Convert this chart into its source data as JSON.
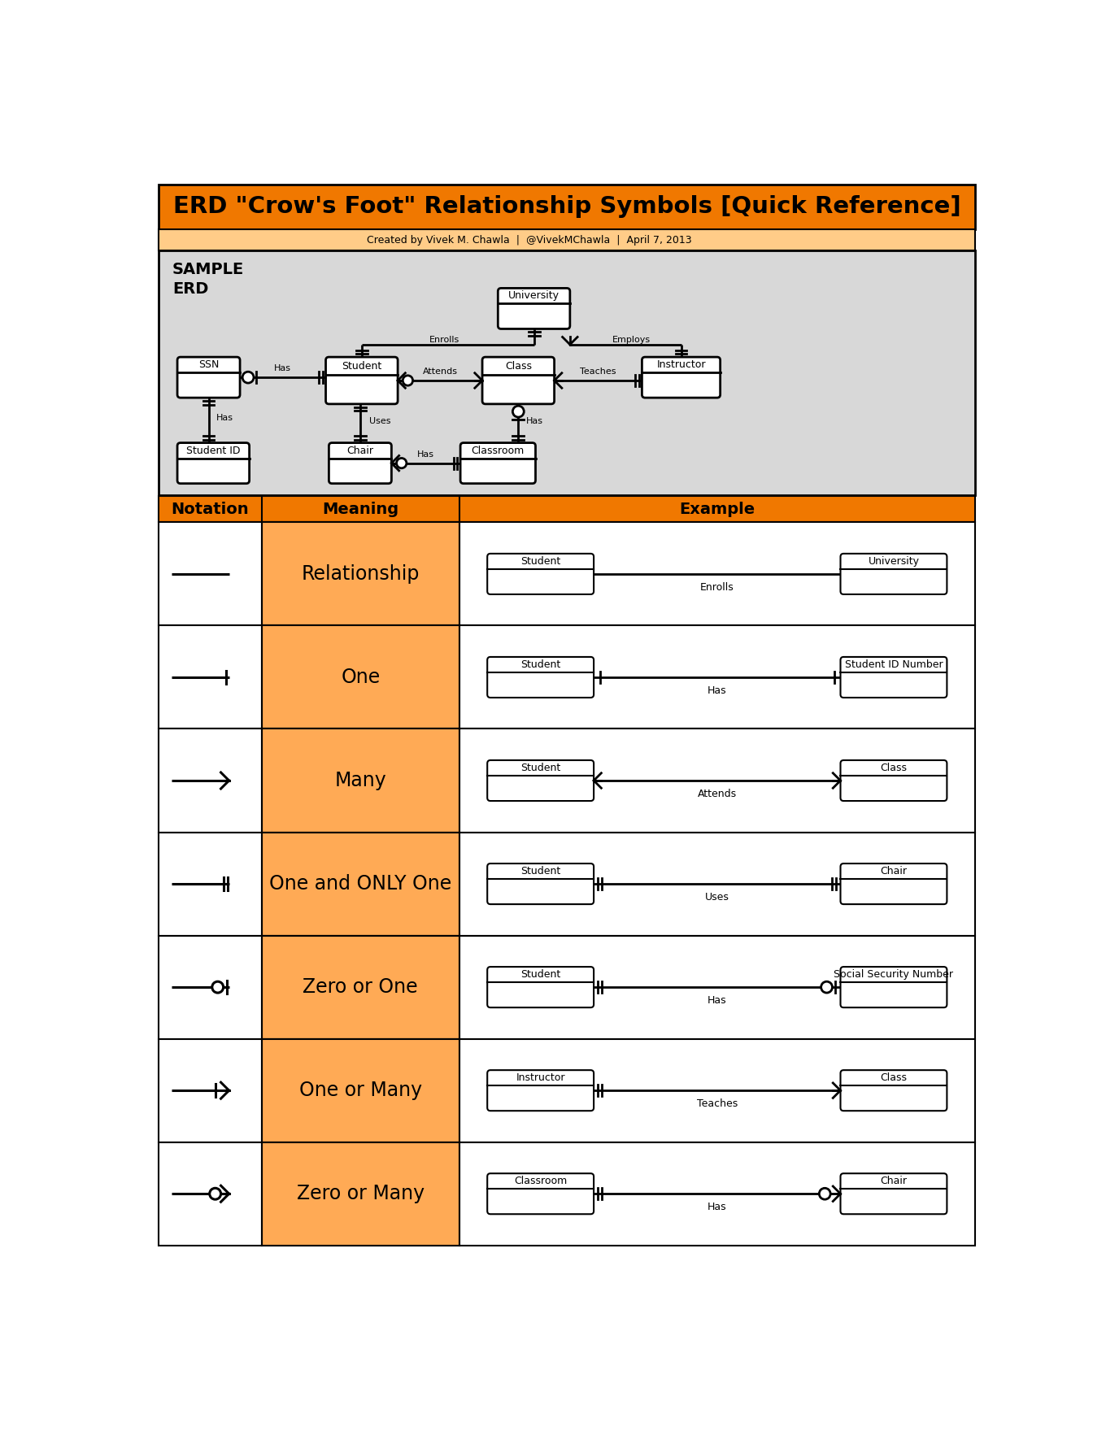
{
  "title": "ERD \"Crow's Foot\" Relationship Symbols [Quick Reference]",
  "subtitle": "Created by Vivek M. Chawla  |  @VivekMChawla  |  April 7, 2013",
  "title_bg": "#F07800",
  "subtitle_bg": "#FFCC88",
  "orange_cell": "#FFAA55",
  "table_header_bg": "#F07800",
  "erd_bg": "#D8D8D8",
  "white": "#FFFFFF",
  "black": "#000000",
  "notation_rows": [
    {
      "notation": "relationship",
      "meaning": "Relationship",
      "example_left": "Student",
      "example_right": "University",
      "example_label": "Enrolls"
    },
    {
      "notation": "one",
      "meaning": "One",
      "example_left": "Student",
      "example_right": "Student ID Number",
      "example_label": "Has"
    },
    {
      "notation": "many",
      "meaning": "Many",
      "example_left": "Student",
      "example_right": "Class",
      "example_label": "Attends"
    },
    {
      "notation": "one_and_only_one",
      "meaning": "One and ONLY One",
      "example_left": "Student",
      "example_right": "Chair",
      "example_label": "Uses"
    },
    {
      "notation": "zero_or_one",
      "meaning": "Zero or One",
      "example_left": "Student",
      "example_right": "Social Security Number",
      "example_label": "Has"
    },
    {
      "notation": "one_or_many",
      "meaning": "One or Many",
      "example_left": "Instructor",
      "example_right": "Class",
      "example_label": "Teaches"
    },
    {
      "notation": "zero_or_many",
      "meaning": "Zero or Many",
      "example_left": "Classroom",
      "example_right": "Chair",
      "example_label": "Has"
    }
  ]
}
